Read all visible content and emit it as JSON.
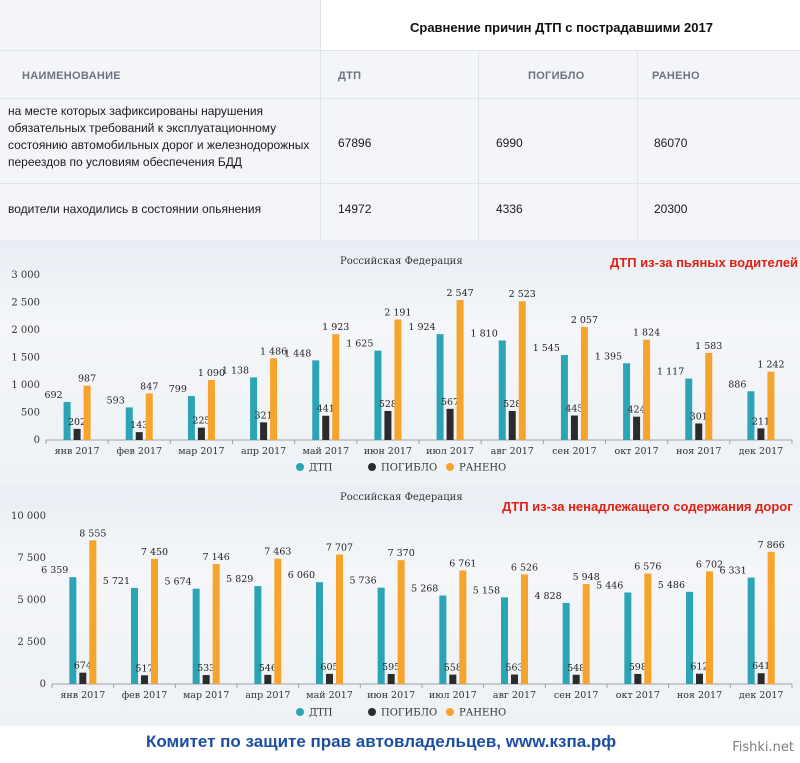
{
  "table": {
    "title": "Сравнение причин ДТП с пострадавшими 2017",
    "headers": [
      "НАИМЕНОВАНИЕ",
      "ДТП",
      "ПОГИБЛО",
      "РАНЕНО"
    ],
    "rows": [
      {
        "name": "на месте которых зафиксированы нарушения обязательных требований к эксплуатационному состоянию автомобильных дорог и железнодорожных переездов по условиям обеспечения БДД",
        "dtp": "67896",
        "killed": "6990",
        "injured": "86070"
      },
      {
        "name": "водители находились в состоянии опьянения",
        "dtp": "14972",
        "killed": "4336",
        "injured": "20300"
      }
    ]
  },
  "chart_data": [
    {
      "type": "bar",
      "title": "ДТП из-за пьяных водителей",
      "subtitle": "Российская Федерация",
      "categories": [
        "янв 2017",
        "фев 2017",
        "мар 2017",
        "апр 2017",
        "май 2017",
        "июн 2017",
        "июл 2017",
        "авг 2017",
        "сен 2017",
        "окт 2017",
        "ноя 2017",
        "дек 2017"
      ],
      "series": [
        {
          "name": "ДТП",
          "color": "#2ba5b3",
          "values": [
            692,
            593,
            799,
            1138,
            1448,
            1625,
            1924,
            1810,
            1545,
            1395,
            1117,
            886
          ],
          "labels": [
            "692",
            "593",
            "799",
            "1 138",
            "1 448",
            "1 625",
            "1 924",
            "1 810",
            "1 545",
            "1 395",
            "1 117",
            "886"
          ]
        },
        {
          "name": "ПОГИБЛО",
          "color": "#2b2b2b",
          "values": [
            202,
            143,
            225,
            321,
            441,
            528,
            567,
            528,
            445,
            424,
            301,
            211
          ],
          "labels": [
            "202",
            "143",
            "225",
            "321",
            "441",
            "528",
            "567",
            "528",
            "445",
            "424",
            "301",
            "211"
          ]
        },
        {
          "name": "РАНЕНО",
          "color": "#f6a42c",
          "values": [
            987,
            847,
            1090,
            1486,
            1923,
            2191,
            2547,
            2523,
            2057,
            1824,
            1583,
            1242
          ],
          "labels": [
            "987",
            "847",
            "1 090",
            "1 486",
            "1 923",
            "2 191",
            "2 547",
            "2 523",
            "2 057",
            "1 824",
            "1 583",
            "1 242"
          ]
        }
      ],
      "ylim": [
        0,
        3000
      ],
      "yticks": [
        0,
        500,
        1000,
        1500,
        2000,
        2500,
        3000
      ],
      "ytick_labels": [
        "0",
        "500",
        "1 000",
        "1 500",
        "2 000",
        "2 500",
        "3 000"
      ],
      "legend": "bottom"
    },
    {
      "type": "bar",
      "title": "ДТП из-за ненадлежащего содержания дорог",
      "subtitle": "Российская Федерация",
      "categories": [
        "янв 2017",
        "фев 2017",
        "мар 2017",
        "апр 2017",
        "май 2017",
        "июн 2017",
        "июл 2017",
        "авг 2017",
        "сен 2017",
        "окт 2017",
        "ноя 2017",
        "дек 2017"
      ],
      "series": [
        {
          "name": "ДТП",
          "color": "#2ba5b3",
          "values": [
            6359,
            5721,
            5674,
            5829,
            6060,
            5736,
            5268,
            5158,
            4828,
            5446,
            5486,
            6331
          ],
          "labels": [
            "6 359",
            "5 721",
            "5 674",
            "5 829",
            "6 060",
            "5 736",
            "5 268",
            "5 158",
            "4 828",
            "5 446",
            "5 486",
            "6 331"
          ]
        },
        {
          "name": "ПОГИБЛО",
          "color": "#2b2b2b",
          "values": [
            674,
            517,
            533,
            546,
            605,
            595,
            558,
            563,
            548,
            598,
            612,
            641
          ],
          "labels": [
            "674",
            "517",
            "533",
            "546",
            "605",
            "595",
            "558",
            "563",
            "548",
            "598",
            "612",
            "641"
          ]
        },
        {
          "name": "РАНЕНО",
          "color": "#f6a42c",
          "values": [
            8555,
            7450,
            7146,
            7463,
            7707,
            7370,
            6761,
            6526,
            5948,
            6576,
            6702,
            7866
          ],
          "labels": [
            "8 555",
            "7 450",
            "7 146",
            "7 463",
            "7 707",
            "7 370",
            "6 761",
            "6 526",
            "5 948",
            "6 576",
            "6 702",
            "7 866"
          ]
        }
      ],
      "ylim": [
        0,
        10000
      ],
      "yticks": [
        0,
        2500,
        5000,
        7500,
        10000
      ],
      "ytick_labels": [
        "0",
        "2 500",
        "5 000",
        "7 500",
        "10 000"
      ],
      "legend": "bottom"
    }
  ],
  "footer": {
    "text": "Комитет по защите прав автовладельцев, www.кзпа.рф",
    "watermark": "Fishki.net"
  }
}
